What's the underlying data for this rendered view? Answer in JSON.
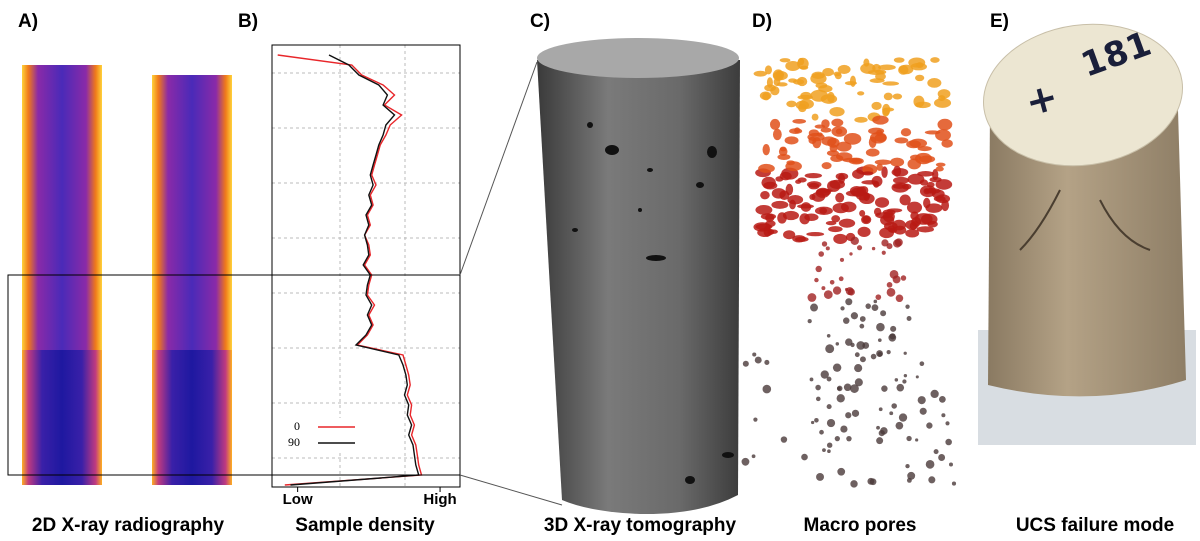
{
  "panels": [
    {
      "label": "A)",
      "caption": "2D X-ray radiography"
    },
    {
      "label": "B)",
      "caption": "Sample density"
    },
    {
      "label": "C)",
      "caption": "3D X-ray tomography"
    },
    {
      "label": "D)",
      "caption": "Macro pores"
    },
    {
      "label": "E)",
      "caption": "UCS failure mode"
    }
  ],
  "chart_data": {
    "type": "line",
    "xlim": [
      -0.18,
      1.14
    ],
    "xticks": [
      {
        "value": 0,
        "label": "Low"
      },
      {
        "value": 1,
        "label": "High"
      }
    ],
    "series": [
      {
        "name": "0",
        "color": "#e8262a",
        "values": [
          -0.14,
          0.38,
          0.45,
          0.6,
          0.68,
          0.61,
          0.73,
          0.65,
          0.62,
          0.58,
          0.56,
          0.54,
          0.52,
          0.55,
          0.51,
          0.53,
          0.49,
          0.51,
          0.47,
          0.5,
          0.51,
          0.47,
          0.52,
          0.5,
          0.49,
          0.54,
          0.5,
          0.53,
          0.49,
          0.42,
          0.74,
          0.76,
          0.78,
          0.79,
          0.77,
          0.8,
          0.79,
          0.82,
          0.8,
          0.83,
          0.84,
          0.85,
          0.87,
          -0.09
        ]
      },
      {
        "name": "90",
        "color": "#111111",
        "values": [
          0.22,
          0.36,
          0.43,
          0.57,
          0.63,
          0.6,
          0.68,
          0.62,
          0.6,
          0.57,
          0.55,
          0.53,
          0.51,
          0.53,
          0.5,
          0.52,
          0.48,
          0.5,
          0.47,
          0.49,
          0.5,
          0.46,
          0.51,
          0.49,
          0.48,
          0.52,
          0.49,
          0.52,
          0.48,
          0.41,
          0.71,
          0.74,
          0.76,
          0.77,
          0.75,
          0.78,
          0.77,
          0.8,
          0.78,
          0.81,
          0.82,
          0.83,
          0.85,
          -0.05
        ]
      }
    ]
  },
  "sample_marks": [
    "181",
    "+"
  ]
}
